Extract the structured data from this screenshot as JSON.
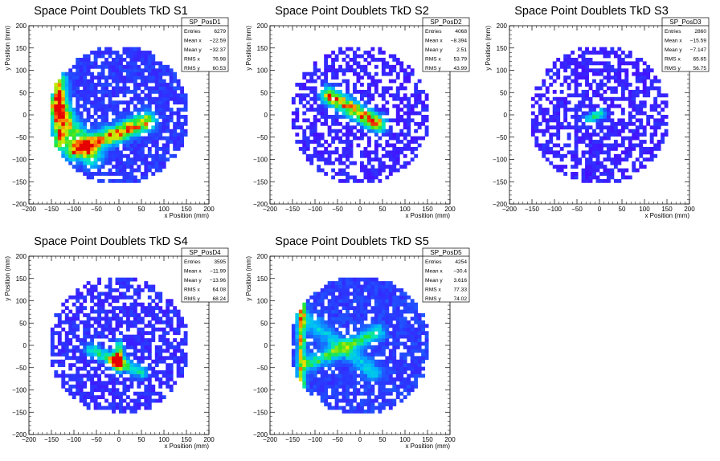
{
  "chart_data": [
    {
      "type": "heatmap",
      "title": "Space Point Doublets TkD S1",
      "xlabel": "x Position (mm)",
      "ylabel": "y Position (mm)",
      "xlim": [
        -200,
        200
      ],
      "ylim": [
        -200,
        200
      ],
      "xticks": [
        -200,
        -150,
        -100,
        -50,
        0,
        50,
        100,
        150,
        200
      ],
      "yticks": [
        -200,
        -150,
        -100,
        -50,
        0,
        50,
        100,
        150,
        200
      ],
      "stats": {
        "name": "SP_PosD1",
        "rows": [
          {
            "label": "Entries",
            "value": "6279"
          },
          {
            "label": "Mean x",
            "value": "−22.59"
          },
          {
            "label": "Mean y",
            "value": "−32.37"
          },
          {
            "label": "RMS x",
            "value": "76.98"
          },
          {
            "label": "RMS y",
            "value": "60.53"
          }
        ]
      },
      "hotspots": [
        {
          "kind": "line",
          "x1": -135,
          "y1": 75,
          "x2": -130,
          "y2": -60,
          "w": 12,
          "amp": 0.8
        },
        {
          "kind": "line",
          "x1": -100,
          "y1": -80,
          "x2": 60,
          "y2": -15,
          "w": 13,
          "amp": 0.85
        },
        {
          "kind": "line",
          "x1": -135,
          "y1": 20,
          "x2": -60,
          "y2": -95,
          "w": 14,
          "amp": 0.55
        }
      ],
      "base_level": 0.07,
      "fill_prob": 0.78,
      "seed": 11
    },
    {
      "type": "heatmap",
      "title": "Space Point Doublets TkD S2",
      "xlabel": "x Position (mm)",
      "ylabel": "y Position (mm)",
      "xlim": [
        -200,
        200
      ],
      "ylim": [
        -200,
        200
      ],
      "xticks": [
        -200,
        -150,
        -100,
        -50,
        0,
        50,
        100,
        150,
        200
      ],
      "yticks": [
        -200,
        -150,
        -100,
        -50,
        0,
        50,
        100,
        150,
        200
      ],
      "stats": {
        "name": "SP_PosD2",
        "rows": [
          {
            "label": "Entries",
            "value": "4068"
          },
          {
            "label": "Mean x",
            "value": "−8.394"
          },
          {
            "label": "Mean y",
            "value": "2.51"
          },
          {
            "label": "RMS x",
            "value": "53.79"
          },
          {
            "label": "RMS y",
            "value": "43.99"
          }
        ]
      },
      "hotspots": [
        {
          "kind": "line",
          "x1": -70,
          "y1": 45,
          "x2": 40,
          "y2": -20,
          "w": 12,
          "amp": 0.95
        }
      ],
      "base_level": 0.03,
      "fill_prob": 0.55,
      "seed": 23
    },
    {
      "type": "heatmap",
      "title": "Space Point Doublets TkD S3",
      "xlabel": "x Position (mm)",
      "ylabel": "y Position (mm)",
      "xlim": [
        -200,
        200
      ],
      "ylim": [
        -200,
        200
      ],
      "xticks": [
        -200,
        -150,
        -100,
        -50,
        0,
        50,
        100,
        150,
        200
      ],
      "yticks": [
        -200,
        -150,
        -100,
        -50,
        0,
        50,
        100,
        150,
        200
      ],
      "stats": {
        "name": "SP_PosD3",
        "rows": [
          {
            "label": "Entries",
            "value": "2860"
          },
          {
            "label": "Mean x",
            "value": "−15.59"
          },
          {
            "label": "Mean y",
            "value": "−7.147"
          },
          {
            "label": "RMS x",
            "value": "65.65"
          },
          {
            "label": "RMS y",
            "value": "56.75"
          }
        ]
      },
      "hotspots": [
        {
          "kind": "line",
          "x1": -25,
          "y1": -10,
          "x2": 5,
          "y2": 5,
          "w": 7,
          "amp": 0.5
        }
      ],
      "base_level": 0.03,
      "fill_prob": 0.6,
      "seed": 37
    },
    {
      "type": "heatmap",
      "title": "Space Point Doublets TkD S4",
      "xlabel": "x Position (mm)",
      "ylabel": "y Position (mm)",
      "xlim": [
        -200,
        200
      ],
      "ylim": [
        -200,
        200
      ],
      "xticks": [
        -200,
        -150,
        -100,
        -50,
        0,
        50,
        100,
        150,
        200
      ],
      "yticks": [
        -200,
        -150,
        -100,
        -50,
        0,
        50,
        100,
        150,
        200
      ],
      "stats": {
        "name": "SP_PosD4",
        "rows": [
          {
            "label": "Entries",
            "value": "3595"
          },
          {
            "label": "Mean x",
            "value": "−11.99"
          },
          {
            "label": "Mean y",
            "value": "−13.96"
          },
          {
            "label": "RMS x",
            "value": "64.08"
          },
          {
            "label": "RMS y",
            "value": "68.24"
          }
        ]
      },
      "hotspots": [
        {
          "kind": "line",
          "x1": -60,
          "y1": -10,
          "x2": 50,
          "y2": -60,
          "w": 9,
          "amp": 0.45
        },
        {
          "kind": "line",
          "x1": 0,
          "y1": 0,
          "x2": 0,
          "y2": -50,
          "w": 7,
          "amp": 0.55
        },
        {
          "kind": "blob",
          "x": -5,
          "y": -35,
          "r": 10,
          "amp": 0.98
        }
      ],
      "base_level": 0.05,
      "fill_prob": 0.66,
      "seed": 41
    },
    {
      "type": "heatmap",
      "title": "Space Point Doublets TkD S5",
      "xlabel": "x Position (mm)",
      "ylabel": "y Position (mm)",
      "xlim": [
        -200,
        200
      ],
      "ylim": [
        -200,
        200
      ],
      "xticks": [
        -200,
        -150,
        -100,
        -50,
        0,
        50,
        100,
        150,
        200
      ],
      "yticks": [
        -200,
        -150,
        -100,
        -50,
        0,
        50,
        100,
        150,
        200
      ],
      "stats": {
        "name": "SP_PosD5",
        "rows": [
          {
            "label": "Entries",
            "value": "4254"
          },
          {
            "label": "Mean x",
            "value": "−30.4"
          },
          {
            "label": "Mean y",
            "value": "3.616"
          },
          {
            "label": "RMS x",
            "value": "77.33"
          },
          {
            "label": "RMS y",
            "value": "74.02"
          }
        ]
      },
      "hotspots": [
        {
          "kind": "line",
          "x1": -130,
          "y1": 95,
          "x2": -130,
          "y2": -105,
          "w": 6,
          "amp": 0.75
        },
        {
          "kind": "line",
          "x1": -110,
          "y1": -40,
          "x2": 40,
          "y2": 30,
          "w": 10,
          "amp": 0.5
        },
        {
          "kind": "line",
          "x1": -120,
          "y1": 60,
          "x2": 30,
          "y2": -60,
          "w": 12,
          "amp": 0.3
        }
      ],
      "base_level": 0.08,
      "fill_prob": 0.85,
      "seed": 53
    }
  ]
}
